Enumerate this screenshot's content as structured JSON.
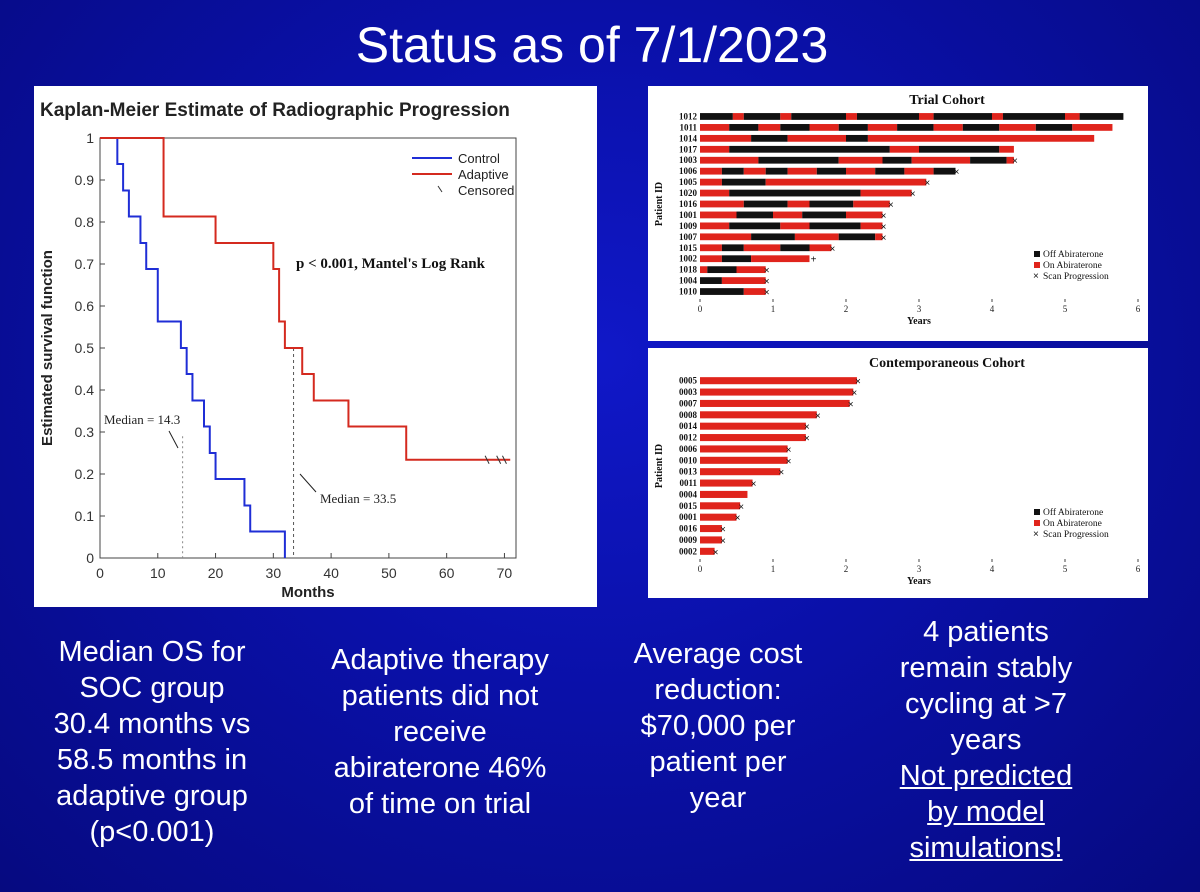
{
  "slide": {
    "title": "Status as of 7/1/2023"
  },
  "bottom_texts": [
    {
      "lines": [
        "Median OS for",
        "SOC group",
        "30.4 months vs",
        "58.5 months in",
        "adaptive group",
        "(p<0.001)"
      ]
    },
    {
      "lines": [
        "Adaptive therapy",
        "patients did not",
        "receive",
        "abiraterone 46%",
        "of time on trial"
      ]
    },
    {
      "lines": [
        "Average cost",
        "reduction:",
        "$70,000 per",
        "patient per",
        "year"
      ]
    },
    {
      "lines": [
        "4 patients",
        "remain stably",
        "cycling at >7",
        "years"
      ],
      "underlined_lines": [
        "Not predicted",
        "by model",
        "simulations!"
      ]
    }
  ],
  "chart_data": [
    {
      "type": "line",
      "title": "Kaplan-Meier Estimate of Radiographic Progression",
      "xlabel": "Months",
      "ylabel": "Estimated survival function",
      "xlim": [
        0,
        72
      ],
      "ylim": [
        0,
        1
      ],
      "xticks": [
        0,
        10,
        20,
        30,
        40,
        50,
        60,
        70
      ],
      "yticks": [
        0,
        0.1,
        0.2,
        0.3,
        0.4,
        0.5,
        0.6,
        0.7,
        0.8,
        0.9,
        1
      ],
      "legend": {
        "position": "top-right",
        "entries": [
          "Control",
          "Adaptive",
          "Censored"
        ]
      },
      "annotations": {
        "pvalue": "p < 0.001, Mantel's Log Rank",
        "median_control": "Median = 14.3",
        "median_adaptive": "Median = 33.5"
      },
      "colors": {
        "control": "#1f2ed6",
        "adaptive": "#d42a1f"
      },
      "medians": {
        "control": 14.3,
        "adaptive": 33.5
      },
      "series": [
        {
          "name": "Control",
          "step_points": [
            [
              0,
              1
            ],
            [
              3,
              1
            ],
            [
              3,
              0.938
            ],
            [
              4,
              0.938
            ],
            [
              4,
              0.875
            ],
            [
              5,
              0.875
            ],
            [
              5,
              0.813
            ],
            [
              7,
              0.813
            ],
            [
              7,
              0.75
            ],
            [
              8,
              0.75
            ],
            [
              8,
              0.688
            ],
            [
              10,
              0.688
            ],
            [
              10,
              0.563
            ],
            [
              14,
              0.563
            ],
            [
              14,
              0.5
            ],
            [
              15,
              0.5
            ],
            [
              15,
              0.438
            ],
            [
              16,
              0.438
            ],
            [
              16,
              0.375
            ],
            [
              18,
              0.375
            ],
            [
              18,
              0.313
            ],
            [
              19,
              0.313
            ],
            [
              19,
              0.25
            ],
            [
              20,
              0.25
            ],
            [
              20,
              0.188
            ],
            [
              25,
              0.188
            ],
            [
              25,
              0.125
            ],
            [
              26,
              0.125
            ],
            [
              26,
              0.063
            ],
            [
              32,
              0.063
            ],
            [
              32,
              0
            ]
          ]
        },
        {
          "name": "Adaptive",
          "step_points": [
            [
              0,
              1
            ],
            [
              11,
              1
            ],
            [
              11,
              0.813
            ],
            [
              20,
              0.813
            ],
            [
              20,
              0.75
            ],
            [
              30,
              0.75
            ],
            [
              30,
              0.688
            ],
            [
              31,
              0.688
            ],
            [
              31,
              0.563
            ],
            [
              32,
              0.563
            ],
            [
              32,
              0.5
            ],
            [
              35,
              0.5
            ],
            [
              35,
              0.438
            ],
            [
              37,
              0.438
            ],
            [
              37,
              0.375
            ],
            [
              43,
              0.375
            ],
            [
              43,
              0.313
            ],
            [
              53,
              0.313
            ],
            [
              53,
              0.234
            ],
            [
              71,
              0.234
            ]
          ],
          "censored_x": [
            67,
            69,
            70
          ]
        }
      ]
    },
    {
      "type": "bar",
      "title": "Trial Cohort",
      "xlabel": "Years",
      "ylabel": "Patient ID",
      "xlim": [
        0,
        6
      ],
      "xticks": [
        0,
        1,
        2,
        3,
        4,
        5,
        6
      ],
      "legend": {
        "position": "bottom-right",
        "entries": [
          "Off Abiraterone",
          "On Abiraterone",
          "Scan Progression"
        ]
      },
      "colors": {
        "off": "#111111",
        "on": "#e0241c"
      },
      "patients": [
        {
          "id": "1012",
          "duration": 5.8,
          "progression": false,
          "segments": [
            [
              0.0,
              0.45,
              "off"
            ],
            [
              0.45,
              0.6,
              "on"
            ],
            [
              0.6,
              1.1,
              "off"
            ],
            [
              1.1,
              1.25,
              "on"
            ],
            [
              1.25,
              2.0,
              "off"
            ],
            [
              2.0,
              2.15,
              "on"
            ],
            [
              2.15,
              3.0,
              "off"
            ],
            [
              3.0,
              3.2,
              "on"
            ],
            [
              3.2,
              4.0,
              "off"
            ],
            [
              4.0,
              4.15,
              "on"
            ],
            [
              4.15,
              5.0,
              "off"
            ],
            [
              5.0,
              5.2,
              "on"
            ],
            [
              5.2,
              5.8,
              "off"
            ]
          ]
        },
        {
          "id": "1011",
          "duration": 5.65,
          "progression": false,
          "segments": [
            [
              0.0,
              0.4,
              "on"
            ],
            [
              0.4,
              0.8,
              "off"
            ],
            [
              0.8,
              1.1,
              "on"
            ],
            [
              1.1,
              1.5,
              "off"
            ],
            [
              1.5,
              1.9,
              "on"
            ],
            [
              1.9,
              2.3,
              "off"
            ],
            [
              2.3,
              2.7,
              "on"
            ],
            [
              2.7,
              3.2,
              "off"
            ],
            [
              3.2,
              3.6,
              "on"
            ],
            [
              3.6,
              4.1,
              "off"
            ],
            [
              4.1,
              4.6,
              "on"
            ],
            [
              4.6,
              5.1,
              "off"
            ],
            [
              5.1,
              5.65,
              "on"
            ]
          ]
        },
        {
          "id": "1014",
          "duration": 5.4,
          "progression": false,
          "segments": [
            [
              0.0,
              0.7,
              "on"
            ],
            [
              0.7,
              1.2,
              "off"
            ],
            [
              1.2,
              2.0,
              "on"
            ],
            [
              2.0,
              2.3,
              "off"
            ],
            [
              2.3,
              5.4,
              "on"
            ]
          ]
        },
        {
          "id": "1017",
          "duration": 4.3,
          "progression": false,
          "segments": [
            [
              0.0,
              0.4,
              "on"
            ],
            [
              0.4,
              2.6,
              "off"
            ],
            [
              2.6,
              3.0,
              "on"
            ],
            [
              3.0,
              4.1,
              "off"
            ],
            [
              4.1,
              4.3,
              "on"
            ]
          ]
        },
        {
          "id": "1003",
          "duration": 4.3,
          "progression": true,
          "segments": [
            [
              0.0,
              0.8,
              "on"
            ],
            [
              0.8,
              1.9,
              "off"
            ],
            [
              1.9,
              2.5,
              "on"
            ],
            [
              2.5,
              2.9,
              "off"
            ],
            [
              2.9,
              3.7,
              "on"
            ],
            [
              3.7,
              4.2,
              "off"
            ],
            [
              4.2,
              4.3,
              "on"
            ]
          ]
        },
        {
          "id": "1006",
          "duration": 3.5,
          "progression": true,
          "segments": [
            [
              0.0,
              0.3,
              "on"
            ],
            [
              0.3,
              0.6,
              "off"
            ],
            [
              0.6,
              0.9,
              "on"
            ],
            [
              0.9,
              1.2,
              "off"
            ],
            [
              1.2,
              1.6,
              "on"
            ],
            [
              1.6,
              2.0,
              "off"
            ],
            [
              2.0,
              2.4,
              "on"
            ],
            [
              2.4,
              2.8,
              "off"
            ],
            [
              2.8,
              3.2,
              "on"
            ],
            [
              3.2,
              3.5,
              "off"
            ]
          ]
        },
        {
          "id": "1005",
          "duration": 3.1,
          "progression": true,
          "segments": [
            [
              0.0,
              0.3,
              "on"
            ],
            [
              0.3,
              0.9,
              "off"
            ],
            [
              0.9,
              3.1,
              "on"
            ]
          ]
        },
        {
          "id": "1020",
          "duration": 2.9,
          "progression": true,
          "segments": [
            [
              0.0,
              0.4,
              "on"
            ],
            [
              0.4,
              2.2,
              "off"
            ],
            [
              2.2,
              2.9,
              "on"
            ]
          ]
        },
        {
          "id": "1016",
          "duration": 2.6,
          "progression": true,
          "segments": [
            [
              0.0,
              0.6,
              "on"
            ],
            [
              0.6,
              1.2,
              "off"
            ],
            [
              1.2,
              1.5,
              "on"
            ],
            [
              1.5,
              2.1,
              "off"
            ],
            [
              2.1,
              2.6,
              "on"
            ]
          ]
        },
        {
          "id": "1001",
          "duration": 2.5,
          "progression": true,
          "segments": [
            [
              0.0,
              0.5,
              "on"
            ],
            [
              0.5,
              1.0,
              "off"
            ],
            [
              1.0,
              1.4,
              "on"
            ],
            [
              1.4,
              2.0,
              "off"
            ],
            [
              2.0,
              2.5,
              "on"
            ]
          ]
        },
        {
          "id": "1009",
          "duration": 2.5,
          "progression": true,
          "segments": [
            [
              0.0,
              0.4,
              "on"
            ],
            [
              0.4,
              1.1,
              "off"
            ],
            [
              1.1,
              1.5,
              "on"
            ],
            [
              1.5,
              2.2,
              "off"
            ],
            [
              2.2,
              2.5,
              "on"
            ]
          ]
        },
        {
          "id": "1007",
          "duration": 2.5,
          "progression": true,
          "segments": [
            [
              0.0,
              0.7,
              "on"
            ],
            [
              0.7,
              1.3,
              "off"
            ],
            [
              1.3,
              1.9,
              "on"
            ],
            [
              1.9,
              2.4,
              "off"
            ],
            [
              2.4,
              2.5,
              "on"
            ]
          ]
        },
        {
          "id": "1015",
          "duration": 1.8,
          "progression": true,
          "segments": [
            [
              0.0,
              0.3,
              "on"
            ],
            [
              0.3,
              0.6,
              "off"
            ],
            [
              0.6,
              1.1,
              "on"
            ],
            [
              1.1,
              1.5,
              "off"
            ],
            [
              1.5,
              1.8,
              "on"
            ]
          ]
        },
        {
          "id": "1002",
          "duration": 1.5,
          "progression": false,
          "censored": true,
          "segments": [
            [
              0.0,
              0.3,
              "on"
            ],
            [
              0.3,
              0.7,
              "off"
            ],
            [
              0.7,
              1.5,
              "on"
            ]
          ]
        },
        {
          "id": "1018",
          "duration": 0.9,
          "progression": true,
          "segments": [
            [
              0.0,
              0.1,
              "on"
            ],
            [
              0.1,
              0.5,
              "off"
            ],
            [
              0.5,
              0.9,
              "on"
            ]
          ]
        },
        {
          "id": "1004",
          "duration": 0.9,
          "progression": true,
          "segments": [
            [
              0.0,
              0.3,
              "off"
            ],
            [
              0.3,
              0.9,
              "on"
            ]
          ]
        },
        {
          "id": "1010",
          "duration": 0.9,
          "progression": true,
          "segments": [
            [
              0.0,
              0.6,
              "off"
            ],
            [
              0.6,
              0.9,
              "on"
            ]
          ]
        }
      ]
    },
    {
      "type": "bar",
      "title": "Contemporaneous Cohort",
      "xlabel": "Years",
      "ylabel": "Patient ID",
      "xlim": [
        0,
        6
      ],
      "xticks": [
        0,
        1,
        2,
        3,
        4,
        5,
        6
      ],
      "legend": {
        "position": "bottom-right",
        "entries": [
          "Off Abiraterone",
          "On Abiraterone",
          "Scan Progression"
        ]
      },
      "colors": {
        "off": "#111111",
        "on": "#e0241c"
      },
      "patients": [
        {
          "id": "0005",
          "duration": 2.15,
          "progression": true
        },
        {
          "id": "0003",
          "duration": 2.1,
          "progression": true
        },
        {
          "id": "0007",
          "duration": 2.05,
          "progression": true
        },
        {
          "id": "0008",
          "duration": 1.6,
          "progression": true
        },
        {
          "id": "0014",
          "duration": 1.45,
          "progression": true
        },
        {
          "id": "0012",
          "duration": 1.45,
          "progression": true
        },
        {
          "id": "0006",
          "duration": 1.2,
          "progression": true
        },
        {
          "id": "0010",
          "duration": 1.2,
          "progression": true
        },
        {
          "id": "0013",
          "duration": 1.1,
          "progression": true
        },
        {
          "id": "0011",
          "duration": 0.72,
          "progression": true
        },
        {
          "id": "0004",
          "duration": 0.65,
          "progression": false
        },
        {
          "id": "0015",
          "duration": 0.55,
          "progression": true
        },
        {
          "id": "0001",
          "duration": 0.5,
          "progression": true
        },
        {
          "id": "0016",
          "duration": 0.3,
          "progression": true
        },
        {
          "id": "0009",
          "duration": 0.3,
          "progression": true
        },
        {
          "id": "0002",
          "duration": 0.2,
          "progression": true
        }
      ]
    }
  ]
}
